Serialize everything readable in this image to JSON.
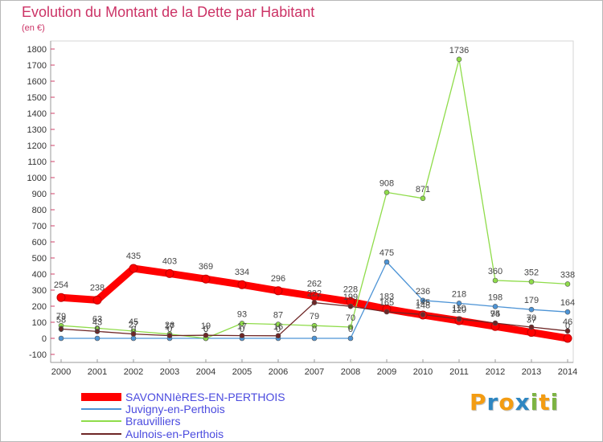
{
  "chart_data": {
    "type": "line",
    "title": "Evolution du Montant de la Dette par Habitant",
    "subtitle": "(en €)",
    "xlabel": "",
    "ylabel": "",
    "x": [
      2000,
      2001,
      2002,
      2003,
      2004,
      2005,
      2006,
      2007,
      2008,
      2009,
      2010,
      2011,
      2012,
      2013,
      2014
    ],
    "ylim": [
      -100,
      1800
    ],
    "yticks": [
      -100,
      0,
      100,
      200,
      300,
      400,
      500,
      600,
      700,
      800,
      900,
      1000,
      1100,
      1200,
      1300,
      1400,
      1500,
      1600,
      1700,
      1800
    ],
    "grid": false,
    "legend": "bottom-left",
    "series": [
      {
        "name": "SAVONNIèRES-EN-PERTHOIS",
        "color": "#ff0000",
        "values": [
          254,
          238,
          435,
          403,
          369,
          334,
          296,
          262,
          228,
          183,
          145,
          110,
          74,
          37,
          0
        ]
      },
      {
        "name": "Juvigny-en-Perthois",
        "color": "#4d94d6",
        "values": [
          0,
          0,
          0,
          0,
          0,
          0,
          0,
          0,
          0,
          475,
          236,
          218,
          198,
          179,
          164
        ]
      },
      {
        "name": "Brauvilliers",
        "color": "#8fdc4a",
        "values": [
          79,
          63,
          45,
          26,
          0,
          93,
          87,
          79,
          70,
          908,
          871,
          1736,
          360,
          352,
          338
        ]
      },
      {
        "name": "Aulnois-en-Perthois",
        "color": "#6e2626",
        "values": [
          58,
          43,
          27,
          17,
          19,
          17,
          16,
          222,
          199,
          165,
          148,
          120,
          95,
          70,
          46
        ]
      }
    ]
  },
  "logo": {
    "text": "Proxiti",
    "colors": [
      "#f39c12",
      "#2e86c1",
      "#f39c12",
      "#2e86c1",
      "#7cb342",
      "#f39c12",
      "#7cb342"
    ]
  }
}
